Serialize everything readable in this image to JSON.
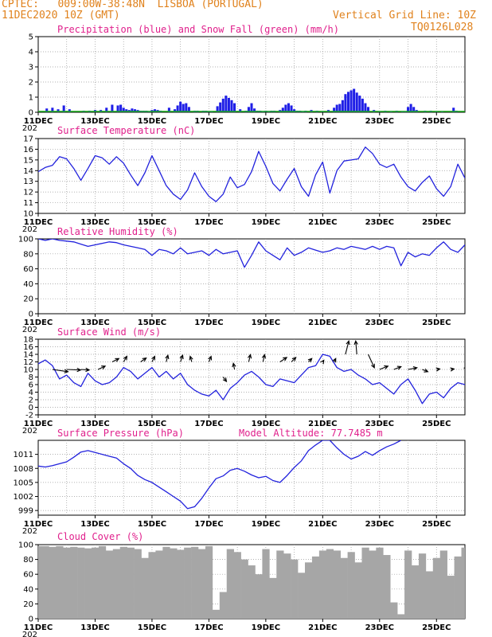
{
  "header": {
    "line1": "CPTEC:   009:00W-38:48N  LISBOA (PORTUGAL)",
    "line2_left": "11DEC2020 10Z (GMT)",
    "line2_right": "Vertical Grid Line: 10Z",
    "line3_right": "TQ0126L028"
  },
  "colors": {
    "header": "#e0821d",
    "title": "#e0208c",
    "series_line": "#2222dd",
    "precip": "#1f1fe6",
    "snow": "#15a815",
    "cloud": "#a6a6a6",
    "wind_arrow": "#000000"
  },
  "x_axis": {
    "tick_labels": [
      "11DEC",
      "13DEC",
      "15DEC",
      "17DEC",
      "19DEC",
      "21DEC",
      "23DEC",
      "25DEC"
    ],
    "range_days": [
      0,
      15
    ],
    "year_fragment": "202"
  },
  "chart_data": [
    {
      "id": "precip",
      "type": "bar",
      "title": "Precipitation (blue) and Snow Fall (green) (mm/h)",
      "ylim": [
        0,
        5
      ],
      "yticks": [
        0,
        1,
        2,
        3,
        4,
        5
      ],
      "grid": true,
      "series": [
        {
          "name": "Precipitation",
          "color": "#1f1fe6",
          "x": [
            0.3,
            0.5,
            0.7,
            0.9,
            1.1,
            1.6,
            1.8,
            2.0,
            2.2,
            2.4,
            2.6,
            2.8,
            2.9,
            3.0,
            3.1,
            3.2,
            3.3,
            3.4,
            3.5,
            3.6,
            3.7,
            3.8,
            3.9,
            4.0,
            4.1,
            4.2,
            4.3,
            4.6,
            4.8,
            4.9,
            5.0,
            5.1,
            5.2,
            5.3,
            5.5,
            5.6,
            5.8,
            5.9,
            6.0,
            6.1,
            6.3,
            6.4,
            6.5,
            6.6,
            6.7,
            6.8,
            6.9,
            7.1,
            7.3,
            7.4,
            7.5,
            7.6,
            7.7,
            7.8,
            7.9,
            8.0,
            8.1,
            8.2,
            8.3,
            8.5,
            8.6,
            8.7,
            8.8,
            8.9,
            9.0,
            9.1,
            9.2,
            9.3,
            9.4,
            9.6,
            9.8,
            10.0,
            10.2,
            10.4,
            10.5,
            10.6,
            10.7,
            10.8,
            10.9,
            11.0,
            11.1,
            11.2,
            11.3,
            11.4,
            11.5,
            11.6,
            11.8,
            12.0,
            12.2,
            12.4,
            12.6,
            12.8,
            12.9,
            13.0,
            13.1,
            13.2,
            13.3,
            13.6,
            13.8,
            14.0,
            14.2,
            14.6,
            14.7
          ],
          "values": [
            0.25,
            0.3,
            0.2,
            0.45,
            0.2,
            0.1,
            0.1,
            0.15,
            0.15,
            0.3,
            0.5,
            0.45,
            0.5,
            0.3,
            0.2,
            0.15,
            0.25,
            0.2,
            0.15,
            0.1,
            0.1,
            0.1,
            0.05,
            0.15,
            0.2,
            0.15,
            0.1,
            0.3,
            0.2,
            0.45,
            0.7,
            0.55,
            0.6,
            0.35,
            0.1,
            0.1,
            0.1,
            0.1,
            0.05,
            0.05,
            0.4,
            0.65,
            0.9,
            1.1,
            0.95,
            0.8,
            0.6,
            0.2,
            0.1,
            0.35,
            0.6,
            0.25,
            0.1,
            0.1,
            0.05,
            0.1,
            0.05,
            0.1,
            0.1,
            0.15,
            0.3,
            0.5,
            0.6,
            0.45,
            0.2,
            0.1,
            0.1,
            0.05,
            0.1,
            0.15,
            0.1,
            0.05,
            0.15,
            0.3,
            0.5,
            0.55,
            0.8,
            1.2,
            1.35,
            1.45,
            1.55,
            1.3,
            1.1,
            0.9,
            0.6,
            0.35,
            0.15,
            0.05,
            0.1,
            0.05,
            0.1,
            0.05,
            0.05,
            0.35,
            0.55,
            0.35,
            0.15,
            0.1,
            0.1,
            0.05,
            0.05,
            0.3,
            0.1
          ]
        },
        {
          "name": "Snow Fall",
          "color": "#15a815",
          "x": [
            0,
            15
          ],
          "values": [
            0.04,
            0.04
          ]
        }
      ]
    },
    {
      "id": "temperature",
      "type": "line",
      "title": "Surface Temperature (nC)",
      "ylim": [
        10,
        17
      ],
      "yticks": [
        10,
        11,
        12,
        13,
        14,
        15,
        16,
        17
      ],
      "grid": true,
      "series": [
        {
          "color": "#2222dd",
          "x": [
            0,
            0.25,
            0.5,
            0.75,
            1.0,
            1.25,
            1.5,
            1.75,
            2.0,
            2.25,
            2.5,
            2.75,
            3.0,
            3.25,
            3.5,
            3.75,
            4.0,
            4.25,
            4.5,
            4.75,
            5.0,
            5.25,
            5.5,
            5.75,
            6.0,
            6.25,
            6.5,
            6.75,
            7.0,
            7.25,
            7.5,
            7.75,
            8.0,
            8.25,
            8.5,
            8.75,
            9.0,
            9.25,
            9.5,
            9.75,
            10.0,
            10.25,
            10.5,
            10.75,
            11.0,
            11.25,
            11.5,
            11.75,
            12.0,
            12.25,
            12.5,
            12.75,
            13.0,
            13.25,
            13.5,
            13.75,
            14.0,
            14.25,
            14.5,
            14.75,
            15.0
          ],
          "values": [
            13.9,
            14.3,
            14.5,
            15.3,
            15.1,
            14.2,
            13.1,
            14.2,
            15.4,
            15.2,
            14.6,
            15.3,
            14.7,
            13.6,
            12.6,
            13.8,
            15.4,
            14.0,
            12.6,
            11.8,
            11.3,
            12.2,
            13.8,
            12.5,
            11.6,
            11.1,
            11.8,
            13.4,
            12.4,
            12.7,
            13.9,
            15.8,
            14.4,
            12.8,
            12.1,
            13.2,
            14.2,
            12.5,
            11.6,
            13.6,
            14.8,
            11.9,
            14.0,
            14.9,
            15.0,
            15.1,
            16.2,
            15.6,
            14.6,
            14.3,
            14.6,
            13.4,
            12.5,
            12.1,
            12.9,
            13.5,
            12.3,
            11.6,
            12.5,
            14.6,
            13.3
          ]
        }
      ]
    },
    {
      "id": "humidity",
      "type": "line",
      "title": "Relative Humidity (%)",
      "ylim": [
        0,
        100
      ],
      "yticks": [
        0,
        20,
        40,
        60,
        80,
        100
      ],
      "grid": true,
      "series": [
        {
          "color": "#2222dd",
          "x": [
            0,
            0.25,
            0.5,
            0.75,
            1.0,
            1.25,
            1.5,
            1.75,
            2.0,
            2.25,
            2.5,
            2.75,
            3.0,
            3.25,
            3.5,
            3.75,
            4.0,
            4.25,
            4.5,
            4.75,
            5.0,
            5.25,
            5.5,
            5.75,
            6.0,
            6.25,
            6.5,
            6.75,
            7.0,
            7.25,
            7.5,
            7.75,
            8.0,
            8.25,
            8.5,
            8.75,
            9.0,
            9.25,
            9.5,
            9.75,
            10.0,
            10.25,
            10.5,
            10.75,
            11.0,
            11.25,
            11.5,
            11.75,
            12.0,
            12.25,
            12.5,
            12.75,
            13.0,
            13.25,
            13.5,
            13.75,
            14.0,
            14.25,
            14.5,
            14.75,
            15.0
          ],
          "values": [
            100,
            98,
            100,
            98,
            97,
            96,
            93,
            90,
            92,
            94,
            96,
            95,
            92,
            90,
            88,
            86,
            78,
            86,
            84,
            80,
            88,
            80,
            82,
            84,
            78,
            86,
            80,
            82,
            84,
            62,
            78,
            96,
            84,
            78,
            72,
            88,
            78,
            82,
            88,
            85,
            82,
            84,
            88,
            86,
            90,
            88,
            86,
            90,
            86,
            90,
            88,
            64,
            82,
            76,
            80,
            78,
            88,
            96,
            86,
            82,
            92
          ]
        }
      ]
    },
    {
      "id": "wind",
      "type": "line",
      "title": "Surface Wind (m/s)",
      "ylim": [
        -2,
        18
      ],
      "yticks": [
        -2,
        0,
        2,
        4,
        6,
        8,
        10,
        12,
        14,
        16,
        18
      ],
      "grid": true,
      "series": [
        {
          "color": "#2222dd",
          "x": [
            0,
            0.25,
            0.5,
            0.75,
            1.0,
            1.25,
            1.5,
            1.75,
            2.0,
            2.25,
            2.5,
            2.75,
            3.0,
            3.25,
            3.5,
            3.75,
            4.0,
            4.25,
            4.5,
            4.75,
            5.0,
            5.25,
            5.5,
            5.75,
            6.0,
            6.25,
            6.5,
            6.75,
            7.0,
            7.25,
            7.5,
            7.75,
            8.0,
            8.25,
            8.5,
            8.75,
            9.0,
            9.25,
            9.5,
            9.75,
            10.0,
            10.25,
            10.5,
            10.75,
            11.0,
            11.25,
            11.5,
            11.75,
            12.0,
            12.25,
            12.5,
            12.75,
            13.0,
            13.25,
            13.5,
            13.75,
            14.0,
            14.25,
            14.5,
            14.75,
            15.0
          ],
          "values": [
            11.5,
            12.5,
            11.0,
            7.5,
            8.5,
            6.5,
            5.5,
            9.0,
            7.0,
            6.0,
            6.5,
            8.0,
            10.5,
            9.5,
            7.5,
            9.0,
            10.5,
            8.0,
            9.5,
            7.5,
            9.0,
            6.0,
            4.5,
            3.5,
            3.0,
            4.5,
            2.0,
            5.0,
            6.5,
            8.5,
            9.5,
            8.0,
            6.0,
            5.5,
            7.5,
            7.0,
            6.5,
            8.5,
            10.5,
            11.0,
            14.0,
            13.5,
            10.5,
            9.5,
            10.0,
            8.5,
            7.5,
            6.0,
            6.5,
            5.0,
            3.5,
            6.0,
            7.5,
            4.5,
            1.0,
            3.5,
            4.0,
            2.5,
            5.0,
            6.5,
            6.0
          ]
        },
        {
          "name": "wind_vectors",
          "color": "#000000",
          "x": [
            0.5,
            1.0,
            1.5,
            2.1,
            2.6,
            3.0,
            3.6,
            4.0,
            4.5,
            5.0,
            5.4,
            6.0,
            6.5,
            6.9,
            7.4,
            7.9,
            8.5,
            8.9,
            9.5,
            10.0,
            10.4,
            10.8,
            11.2,
            11.6,
            12.0,
            12.5,
            13.0,
            13.5,
            14.0,
            14.5,
            15.0
          ],
          "y": [
            10,
            10,
            10,
            10,
            12,
            12,
            12,
            12,
            12,
            12,
            12,
            12,
            8,
            10,
            12,
            12,
            12,
            12,
            12,
            12,
            12,
            14,
            14,
            14,
            10,
            10,
            10,
            10,
            10,
            10,
            10
          ],
          "u": [
            2.8,
            2.5,
            1.5,
            1.3,
            1.2,
            0.6,
            1.0,
            0.5,
            0.3,
            0.4,
            -0.3,
            0.4,
            0.6,
            -0.2,
            0.3,
            0.3,
            1.2,
            0.8,
            0.6,
            0.2,
            0.3,
            0.6,
            -0.2,
            1.1,
            1.5,
            1.3,
            1.6,
            1.0,
            0.6,
            0.6,
            0.5
          ],
          "v": [
            -0.4,
            -0.1,
            -0.1,
            0.6,
            0.6,
            1.0,
            0.7,
            1.0,
            1.2,
            1.2,
            1.0,
            1.0,
            -0.8,
            1.1,
            1.3,
            1.3,
            0.8,
            0.8,
            0.6,
            0.3,
            0.6,
            2.4,
            2.4,
            -2.4,
            0.6,
            0.5,
            0.3,
            -0.4,
            0.1,
            0.1,
            0.4
          ]
        }
      ]
    },
    {
      "id": "pressure",
      "type": "line",
      "title": "Surface Pressure (hPa)",
      "annotation": "Model Altitude: 77.7485 m",
      "ylim": [
        998,
        1014
      ],
      "yticks": [
        999,
        1002,
        1005,
        1008,
        1011
      ],
      "grid": true,
      "series": [
        {
          "color": "#2222dd",
          "x": [
            0,
            0.25,
            0.5,
            0.75,
            1.0,
            1.25,
            1.5,
            1.75,
            2.0,
            2.25,
            2.5,
            2.75,
            3.0,
            3.25,
            3.5,
            3.75,
            4.0,
            4.25,
            4.5,
            4.75,
            5.0,
            5.25,
            5.5,
            5.75,
            6.0,
            6.25,
            6.5,
            6.75,
            7.0,
            7.25,
            7.5,
            7.75,
            8.0,
            8.25,
            8.5,
            8.75,
            9.0,
            9.25,
            9.5,
            9.75,
            10.0,
            10.25,
            10.5,
            10.75,
            11.0,
            11.25,
            11.5,
            11.75,
            12.0,
            12.25,
            12.5,
            12.75
          ],
          "values": [
            1008.5,
            1008.3,
            1008.6,
            1009.0,
            1009.4,
            1010.4,
            1011.5,
            1011.8,
            1011.4,
            1011.0,
            1010.6,
            1010.2,
            1009.0,
            1008.0,
            1006.5,
            1005.6,
            1005.0,
            1004.0,
            1003.0,
            1002.0,
            1001.0,
            999.4,
            999.8,
            1001.6,
            1003.8,
            1005.8,
            1006.4,
            1007.6,
            1008.0,
            1007.4,
            1006.6,
            1006.0,
            1006.3,
            1005.4,
            1005.0,
            1006.5,
            1008.2,
            1009.6,
            1011.8,
            1013.0,
            1014.5,
            1014.5,
            1012.4,
            1011.0,
            1010.0,
            1010.6,
            1011.6,
            1010.8,
            1011.8,
            1012.6,
            1013.2,
            1014.5
          ]
        }
      ]
    },
    {
      "id": "cloud",
      "type": "area",
      "title": "Cloud Cover (%)",
      "ylim": [
        0,
        100
      ],
      "yticks": [
        0,
        20,
        40,
        60,
        80,
        100
      ],
      "grid": true,
      "series": [
        {
          "color": "#a6a6a6",
          "x": [
            0,
            0.25,
            0.5,
            0.75,
            1.0,
            1.25,
            1.5,
            1.75,
            2.0,
            2.25,
            2.5,
            2.75,
            3.0,
            3.25,
            3.5,
            3.75,
            4.0,
            4.25,
            4.5,
            4.75,
            5.0,
            5.25,
            5.5,
            5.75,
            6.0,
            6.25,
            6.5,
            6.75,
            7.0,
            7.25,
            7.5,
            7.75,
            8.0,
            8.25,
            8.5,
            8.75,
            9.0,
            9.25,
            9.5,
            9.75,
            10.0,
            10.25,
            10.5,
            10.75,
            11.0,
            11.25,
            11.5,
            11.75,
            12.0,
            12.25,
            12.5,
            12.75,
            13.0,
            13.25,
            13.5,
            13.75,
            14.0,
            14.25,
            14.5,
            14.75,
            15.0
          ],
          "values": [
            98,
            98,
            97,
            98,
            96,
            97,
            96,
            95,
            96,
            98,
            92,
            94,
            97,
            96,
            94,
            82,
            90,
            92,
            97,
            95,
            93,
            96,
            97,
            94,
            98,
            12,
            36,
            94,
            90,
            80,
            72,
            60,
            94,
            55,
            92,
            88,
            80,
            62,
            76,
            84,
            92,
            94,
            92,
            82,
            90,
            76,
            96,
            92,
            96,
            86,
            22,
            6,
            92,
            72,
            88,
            64,
            82,
            92,
            58,
            84,
            96
          ]
        }
      ]
    }
  ]
}
